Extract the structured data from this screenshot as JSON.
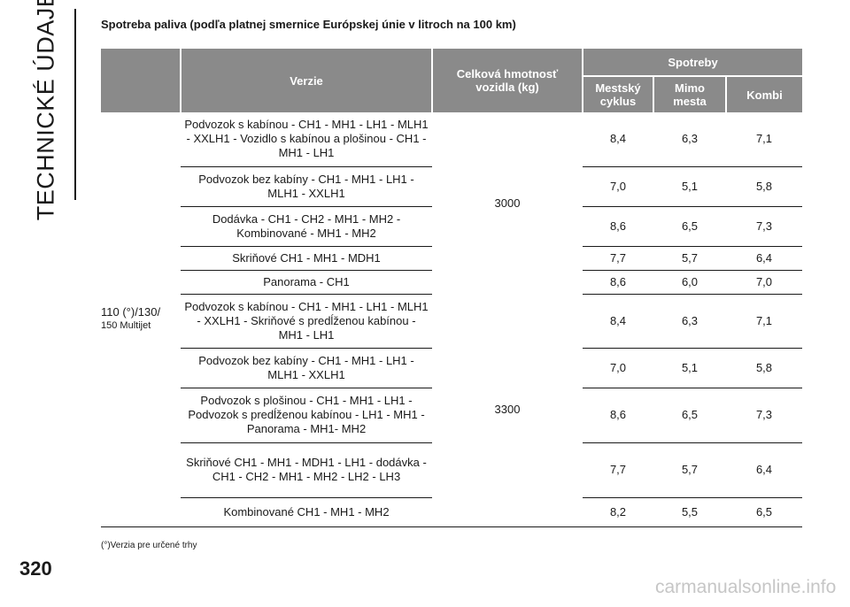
{
  "side_title": "TECHNICKÉ ÚDAJE",
  "heading": "Spotreba paliva (podľa platnej smernice Európskej únie v litroch na 100 km)",
  "table": {
    "headers": {
      "verzie": "Verzie",
      "hmotnost": "Celková hmotnosť vozidla (kg)",
      "spotreby": "Spotreby",
      "mestsky": "Mestský cyklus",
      "mimo": "Mimo mesta",
      "kombi": "Kombi"
    },
    "model": {
      "line1": "110 (°)/130/",
      "line2": "150 Multijet"
    },
    "weights": [
      "3000",
      "3300"
    ],
    "rows": [
      {
        "verzie": "Podvozok s kabínou - CH1 - MH1 - LH1 - MLH1 - XXLH1 - Vozidlo s kabínou a plošinou - CH1 - MH1 - LH1",
        "mestsky": "8,4",
        "mimo": "6,3",
        "kombi": "7,1"
      },
      {
        "verzie": "Podvozok bez kabíny - CH1 - MH1 - LH1 - MLH1 - XXLH1",
        "mestsky": "7,0",
        "mimo": "5,1",
        "kombi": "5,8"
      },
      {
        "verzie": "Dodávka - CH1 - CH2 - MH1 - MH2 - Kombinované - MH1 - MH2",
        "mestsky": "8,6",
        "mimo": "6,5",
        "kombi": "7,3"
      },
      {
        "verzie": "Skriňové CH1 - MH1 - MDH1",
        "mestsky": "7,7",
        "mimo": "5,7",
        "kombi": "6,4"
      },
      {
        "verzie": "Panorama - CH1",
        "mestsky": "8,6",
        "mimo": "6,0",
        "kombi": "7,0"
      },
      {
        "verzie": "Podvozok s kabínou - CH1 - MH1 - LH1 - MLH1 - XXLH1 - Skriňové s predĺženou kabínou - MH1 - LH1",
        "mestsky": "8,4",
        "mimo": "6,3",
        "kombi": "7,1"
      },
      {
        "verzie": "Podvozok bez kabíny - CH1 - MH1 - LH1 - MLH1 - XXLH1",
        "mestsky": "7,0",
        "mimo": "5,1",
        "kombi": "5,8"
      },
      {
        "verzie": "Podvozok s plošinou - CH1 - MH1 - LH1 - Podvozok s predĺženou kabínou - LH1 - MH1 - Panorama - MH1- MH2",
        "mestsky": "8,6",
        "mimo": "6,5",
        "kombi": "7,3"
      },
      {
        "verzie": "Skriňové CH1 - MH1 - MDH1 - LH1 - dodávka - CH1 - CH2 - MH1 - MH2 - LH2 - LH3",
        "mestsky": "7,7",
        "mimo": "5,7",
        "kombi": "6,4"
      },
      {
        "verzie": "Kombinované CH1 - MH1 - MH2",
        "mestsky": "8,2",
        "mimo": "5,5",
        "kombi": "6,5"
      }
    ]
  },
  "footnote": "(°)Verzia pre určené trhy",
  "page_number": "320",
  "watermark": "carmanualsonline.info",
  "colors": {
    "header_bg": "#8a8a8a",
    "header_text": "#ffffff",
    "rule": "#1a1a1a"
  }
}
